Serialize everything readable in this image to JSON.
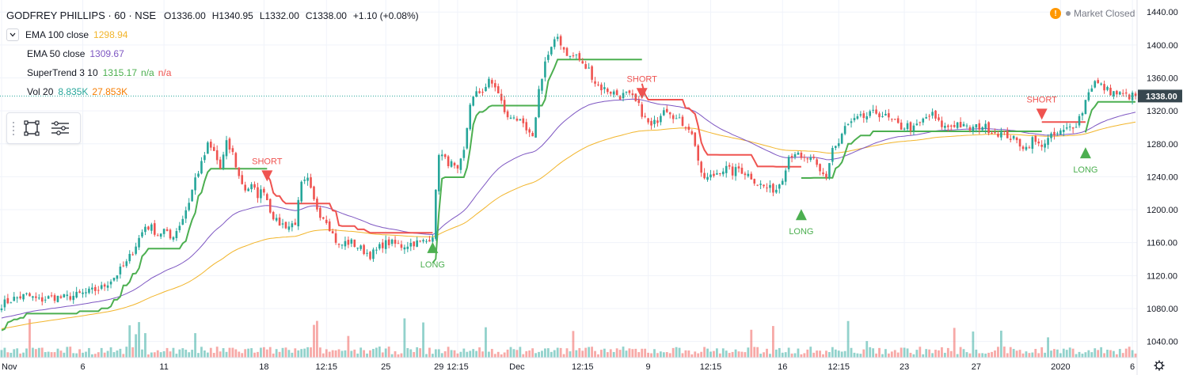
{
  "header": {
    "title": "GODFREY PHILLIPS · 60 · NSE",
    "open": "O1336.00",
    "high": "H1340.95",
    "low": "L1332.00",
    "close": "C1338.00",
    "change": "+1.10 (+0.08%)"
  },
  "indicators": [
    {
      "label": "EMA 100 close",
      "value": "1298.94",
      "color": "#f2b52b"
    },
    {
      "label": "EMA 50 close",
      "value": "1309.67",
      "color": "#7e57c2"
    },
    {
      "label": "SuperTrend 3 10",
      "value": "1315.17",
      "extra1": "n/a",
      "extra2": "n/a",
      "color": "#4caf50",
      "color2": "#ef5350"
    },
    {
      "label": "Vol 20",
      "value": "8.835K",
      "value2": "27.853K",
      "color": "#26a69a",
      "color2": "#f57c00"
    }
  ],
  "status": {
    "label": "Market Closed",
    "warning_icon": "!"
  },
  "toolbox": {
    "icons": [
      "rectangle-tool-icon",
      "settings-lines-icon"
    ]
  },
  "colors": {
    "up": "#26a69a",
    "down": "#ef5350",
    "st_up": "#4caf50",
    "st_down": "#ef5350",
    "ema50": "#7e57c2",
    "ema100": "#f2b52b",
    "vol_up": "#26a69a",
    "vol_down": "#ef5350",
    "price_label_bg": "#37474f"
  },
  "chart_data": {
    "type": "candlestick",
    "ylim": [
      1030,
      1445
    ],
    "y_ticks": [
      1440,
      1400,
      1360,
      1320,
      1280,
      1240,
      1200,
      1160,
      1120,
      1080,
      1040
    ],
    "last_price": 1338.0,
    "last_price_label": "1338.00",
    "x_ticks": [
      {
        "label": "Nov",
        "i": 0
      },
      {
        "label": "6",
        "i": 26
      },
      {
        "label": "11",
        "i": 52
      },
      {
        "label": "18",
        "i": 84
      },
      {
        "label": "12:15",
        "i": 104
      },
      {
        "label": "25",
        "i": 123
      },
      {
        "label": "29",
        "i": 140
      },
      {
        "label": "12:15",
        "i": 146
      },
      {
        "label": "Dec",
        "i": 165
      },
      {
        "label": "12:15",
        "i": 186
      },
      {
        "label": "9",
        "i": 207
      },
      {
        "label": "12:15",
        "i": 227
      },
      {
        "label": "16",
        "i": 250
      },
      {
        "label": "12:15",
        "i": 268
      },
      {
        "label": "23",
        "i": 289
      },
      {
        "label": "27",
        "i": 312
      },
      {
        "label": "2020",
        "i": 339
      },
      {
        "label": "6",
        "i": 362
      }
    ],
    "signals": [
      {
        "type": "SHORT",
        "label": "SHORT",
        "i": 85,
        "price": 1240
      },
      {
        "type": "LONG",
        "label": "LONG",
        "i": 138,
        "price": 1155
      },
      {
        "type": "SHORT",
        "label": "SHORT",
        "i": 205,
        "price": 1340
      },
      {
        "type": "LONG",
        "label": "LONG",
        "i": 256,
        "price": 1195
      },
      {
        "type": "SHORT",
        "label": "SHORT",
        "i": 333,
        "price": 1315
      },
      {
        "type": "LONG",
        "label": "LONG",
        "i": 347,
        "price": 1270
      }
    ],
    "price_anchors": [
      [
        0,
        1085
      ],
      [
        4,
        1092
      ],
      [
        8,
        1096
      ],
      [
        12,
        1090
      ],
      [
        16,
        1094
      ],
      [
        20,
        1093
      ],
      [
        24,
        1096
      ],
      [
        28,
        1100
      ],
      [
        32,
        1105
      ],
      [
        36,
        1118
      ],
      [
        40,
        1135
      ],
      [
        42,
        1150
      ],
      [
        44,
        1165
      ],
      [
        46,
        1180
      ],
      [
        48,
        1178
      ],
      [
        50,
        1170
      ],
      [
        52,
        1175
      ],
      [
        54,
        1165
      ],
      [
        56,
        1175
      ],
      [
        58,
        1190
      ],
      [
        60,
        1210
      ],
      [
        62,
        1238
      ],
      [
        64,
        1255
      ],
      [
        66,
        1278
      ],
      [
        68,
        1270
      ],
      [
        70,
        1250
      ],
      [
        72,
        1280
      ],
      [
        74,
        1268
      ],
      [
        76,
        1240
      ],
      [
        78,
        1225
      ],
      [
        80,
        1228
      ],
      [
        82,
        1218
      ],
      [
        84,
        1225
      ],
      [
        86,
        1200
      ],
      [
        88,
        1185
      ],
      [
        90,
        1182
      ],
      [
        92,
        1180
      ],
      [
        94,
        1185
      ],
      [
        96,
        1230
      ],
      [
        98,
        1235
      ],
      [
        100,
        1210
      ],
      [
        102,
        1195
      ],
      [
        104,
        1188
      ],
      [
        106,
        1170
      ],
      [
        108,
        1155
      ],
      [
        110,
        1160
      ],
      [
        112,
        1160
      ],
      [
        114,
        1155
      ],
      [
        116,
        1150
      ],
      [
        118,
        1145
      ],
      [
        120,
        1150
      ],
      [
        122,
        1158
      ],
      [
        124,
        1160
      ],
      [
        126,
        1158
      ],
      [
        128,
        1156
      ],
      [
        130,
        1158
      ],
      [
        132,
        1160
      ],
      [
        134,
        1160
      ],
      [
        136,
        1162
      ],
      [
        138,
        1170
      ],
      [
        140,
        1270
      ],
      [
        142,
        1260
      ],
      [
        144,
        1255
      ],
      [
        146,
        1245
      ],
      [
        148,
        1270
      ],
      [
        150,
        1330
      ],
      [
        152,
        1340
      ],
      [
        154,
        1345
      ],
      [
        156,
        1355
      ],
      [
        158,
        1350
      ],
      [
        160,
        1330
      ],
      [
        162,
        1310
      ],
      [
        164,
        1315
      ],
      [
        166,
        1305
      ],
      [
        168,
        1295
      ],
      [
        170,
        1285
      ],
      [
        172,
        1345
      ],
      [
        174,
        1380
      ],
      [
        176,
        1395
      ],
      [
        178,
        1410
      ],
      [
        180,
        1395
      ],
      [
        182,
        1385
      ],
      [
        184,
        1388
      ],
      [
        186,
        1375
      ],
      [
        188,
        1370
      ],
      [
        190,
        1355
      ],
      [
        192,
        1348
      ],
      [
        194,
        1345
      ],
      [
        196,
        1342
      ],
      [
        198,
        1338
      ],
      [
        200,
        1340
      ],
      [
        202,
        1335
      ],
      [
        204,
        1325
      ],
      [
        206,
        1310
      ],
      [
        208,
        1300
      ],
      [
        210,
        1310
      ],
      [
        212,
        1325
      ],
      [
        214,
        1320
      ],
      [
        216,
        1310
      ],
      [
        218,
        1305
      ],
      [
        220,
        1300
      ],
      [
        222,
        1280
      ],
      [
        224,
        1240
      ],
      [
        226,
        1238
      ],
      [
        228,
        1242
      ],
      [
        230,
        1248
      ],
      [
        232,
        1250
      ],
      [
        234,
        1245
      ],
      [
        236,
        1250
      ],
      [
        238,
        1245
      ],
      [
        240,
        1240
      ],
      [
        242,
        1232
      ],
      [
        244,
        1228
      ],
      [
        246,
        1225
      ],
      [
        248,
        1225
      ],
      [
        250,
        1240
      ],
      [
        252,
        1265
      ],
      [
        254,
        1270
      ],
      [
        256,
        1260
      ],
      [
        258,
        1262
      ],
      [
        260,
        1258
      ],
      [
        262,
        1245
      ],
      [
        264,
        1240
      ],
      [
        266,
        1275
      ],
      [
        268,
        1280
      ],
      [
        270,
        1300
      ],
      [
        272,
        1305
      ],
      [
        274,
        1310
      ],
      [
        276,
        1312
      ],
      [
        278,
        1315
      ],
      [
        280,
        1318
      ],
      [
        282,
        1315
      ],
      [
        284,
        1310
      ],
      [
        286,
        1305
      ],
      [
        288,
        1300
      ],
      [
        290,
        1302
      ],
      [
        292,
        1298
      ],
      [
        294,
        1305
      ],
      [
        296,
        1312
      ],
      [
        298,
        1315
      ],
      [
        300,
        1305
      ],
      [
        302,
        1300
      ],
      [
        304,
        1302
      ],
      [
        306,
        1305
      ],
      [
        308,
        1300
      ],
      [
        310,
        1298
      ],
      [
        312,
        1300
      ],
      [
        314,
        1302
      ],
      [
        316,
        1298
      ],
      [
        318,
        1295
      ],
      [
        320,
        1292
      ],
      [
        322,
        1290
      ],
      [
        324,
        1285
      ],
      [
        326,
        1280
      ],
      [
        328,
        1275
      ],
      [
        330,
        1285
      ],
      [
        332,
        1278
      ],
      [
        334,
        1282
      ],
      [
        336,
        1288
      ],
      [
        338,
        1292
      ],
      [
        340,
        1295
      ],
      [
        342,
        1300
      ],
      [
        344,
        1305
      ],
      [
        346,
        1320
      ],
      [
        348,
        1345
      ],
      [
        350,
        1355
      ],
      [
        352,
        1350
      ],
      [
        354,
        1345
      ],
      [
        356,
        1342
      ],
      [
        358,
        1340
      ],
      [
        360,
        1338
      ]
    ]
  }
}
